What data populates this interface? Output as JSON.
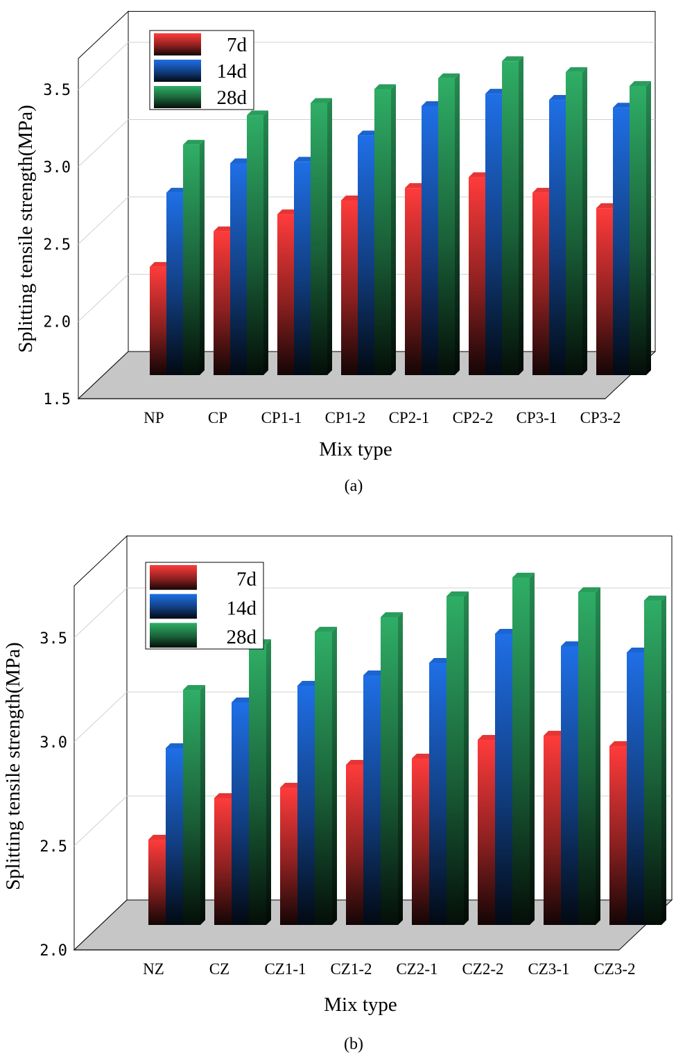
{
  "colors": {
    "7d": "#ff3b3b",
    "14d": "#1f6fe6",
    "28d": "#2fae66",
    "floor": "#c6c6c6",
    "grid": "#d0d0d0"
  },
  "chart_data": [
    {
      "type": "bar",
      "title": "",
      "panel_label": "(a)",
      "xlabel": "Mix type",
      "ylabel": "Splitting tensile strength(MPa)",
      "ylim": [
        1.5,
        3.7
      ],
      "yticks": [
        "1.5",
        "2.0",
        "2.5",
        "3.0",
        "3.5"
      ],
      "ytick_values": [
        1.5,
        2.0,
        2.5,
        3.0,
        3.5
      ],
      "categories": [
        "NP",
        "CP",
        "CP1-1",
        "CP1-2",
        "CP2-1",
        "CP2-2",
        "CP3-1",
        "CP3-2"
      ],
      "series": [
        {
          "name": "7d",
          "values": [
            2.2,
            2.43,
            2.54,
            2.63,
            2.71,
            2.78,
            2.68,
            2.58
          ]
        },
        {
          "name": "14d",
          "values": [
            2.68,
            2.87,
            2.88,
            3.05,
            3.24,
            3.32,
            3.28,
            3.23
          ]
        },
        {
          "name": "28d",
          "values": [
            2.99,
            3.18,
            3.26,
            3.35,
            3.42,
            3.53,
            3.46,
            3.37
          ]
        }
      ],
      "legend": [
        "7d",
        "14d",
        "28d"
      ],
      "legend_position": "top-left",
      "grid": true
    },
    {
      "type": "bar",
      "title": "",
      "panel_label": "(b)",
      "xlabel": "Mix type",
      "ylabel": "Splitting tensile strength(MPa)",
      "ylim": [
        2.0,
        3.75
      ],
      "yticks": [
        "2.0",
        "2.5",
        "3.0",
        "3.5"
      ],
      "ytick_values": [
        2.0,
        2.5,
        3.0,
        3.5
      ],
      "categories": [
        "NZ",
        "CZ",
        "CZ1-1",
        "CZ1-2",
        "CZ2-1",
        "CZ2-2",
        "CZ3-1",
        "CZ3-2"
      ],
      "series": [
        {
          "name": "7d",
          "values": [
            2.41,
            2.61,
            2.66,
            2.77,
            2.8,
            2.89,
            2.91,
            2.86
          ]
        },
        {
          "name": "14d",
          "values": [
            2.85,
            3.07,
            3.15,
            3.2,
            3.26,
            3.4,
            3.34,
            3.31
          ]
        },
        {
          "name": "28d",
          "values": [
            3.13,
            3.35,
            3.41,
            3.48,
            3.58,
            3.67,
            3.6,
            3.56
          ]
        }
      ],
      "legend": [
        "7d",
        "14d",
        "28d"
      ],
      "legend_position": "top-left",
      "grid": true
    }
  ]
}
